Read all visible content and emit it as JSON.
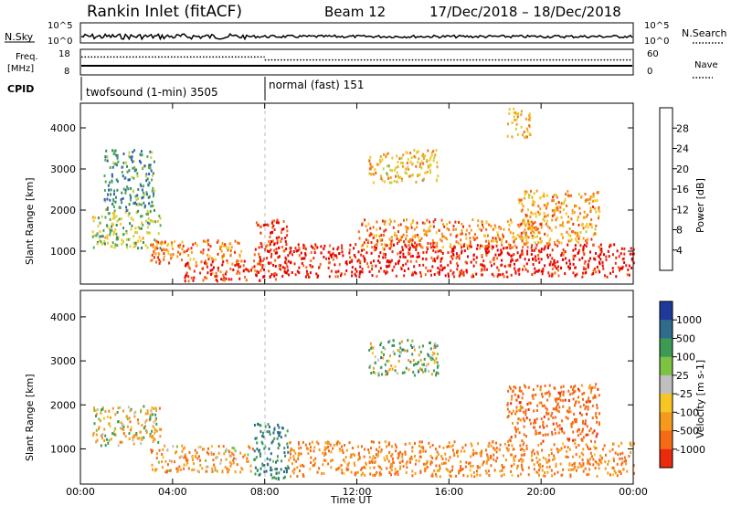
{
  "header": {
    "station": "Rankin Inlet (fitACF)",
    "beam": "Beam 12",
    "date_range": "17/Dec/2018 – 18/Dec/2018"
  },
  "top_panels": {
    "nsky_label": "N.Sky",
    "nsky_ticks": [
      "10^5",
      "10^0"
    ],
    "nsearch_label": "N.Search",
    "freq_label_1": "Freq.",
    "freq_label_2": "[MHz]",
    "freq_ticks": [
      "18",
      "8"
    ],
    "nave_ticks": [
      "60",
      "0"
    ],
    "nave_label": "Nave",
    "cpid_label": "CPID",
    "cpid_segments": [
      {
        "label": "twofsound (1-min) 3505",
        "start_hour": 0,
        "end_hour": 8
      },
      {
        "label": "normal (fast) 151",
        "start_hour": 8,
        "end_hour": 24
      }
    ],
    "freq_value_mhz": 13,
    "nave_dotted_before": 44,
    "nave_dotted_after": 36
  },
  "chart_data": [
    {
      "type": "heatmap",
      "name": "power",
      "xlabel": "",
      "ylabel": "Slant Range [km]",
      "xlim_hours": [
        0,
        24
      ],
      "ylim": [
        200,
        4600
      ],
      "yticks": [
        1000,
        2000,
        3000,
        4000
      ],
      "colorbar": {
        "label": "Power [dB]",
        "ticks": [
          "4",
          "8",
          "12",
          "16",
          "20",
          "24",
          "28"
        ],
        "colors": [
          "#0a1ee6",
          "#2d5fb8",
          "#3a8a6a",
          "#54a754",
          "#c8d23c",
          "#f7c623",
          "#f59a1c",
          "#f56a14",
          "#ea2a0c",
          "#e60000"
        ]
      },
      "regions": [
        {
          "x0": 0.5,
          "x1": 3.5,
          "y0": 1100,
          "y1": 2000,
          "value": 14
        },
        {
          "x0": 1.0,
          "x1": 3.2,
          "y0": 2000,
          "y1": 3500,
          "value": 10
        },
        {
          "x0": 3.0,
          "x1": 7.0,
          "y0": 700,
          "y1": 1300,
          "value": 22
        },
        {
          "x0": 4.5,
          "x1": 7.8,
          "y0": 300,
          "y1": 800,
          "value": 26
        },
        {
          "x0": 7.5,
          "x1": 9.0,
          "y0": 300,
          "y1": 1800,
          "value": 27
        },
        {
          "x0": 9.0,
          "x1": 24.0,
          "y0": 400,
          "y1": 1200,
          "value": 28
        },
        {
          "x0": 12.0,
          "x1": 20.0,
          "y0": 1100,
          "y1": 1800,
          "value": 22
        },
        {
          "x0": 19.0,
          "x1": 22.5,
          "y0": 1200,
          "y1": 2500,
          "value": 20
        },
        {
          "x0": 12.5,
          "x1": 15.5,
          "y0": 2700,
          "y1": 3500,
          "value": 18
        },
        {
          "x0": 18.5,
          "x1": 19.5,
          "y0": 3800,
          "y1": 4500,
          "value": 18
        }
      ]
    },
    {
      "type": "heatmap",
      "name": "velocity",
      "xlabel": "Time UT",
      "ylabel": "Slant Range [km]",
      "xlim_hours": [
        0,
        24
      ],
      "ylim": [
        200,
        4600
      ],
      "yticks": [
        1000,
        2000,
        3000,
        4000
      ],
      "xticks": [
        "00:00",
        "04:00",
        "08:00",
        "12:00",
        "16:00",
        "20:00",
        "00:00"
      ],
      "colorbar": {
        "label": "Velocity [m s-1]",
        "ticks": [
          "1000",
          "500",
          "100",
          "25",
          "-25",
          "-100",
          "-500",
          "-1000"
        ],
        "colors": [
          "#1f3a9a",
          "#2f6c8c",
          "#3c9a55",
          "#7cc243",
          "#bfbfbf",
          "#f7c623",
          "#f59a1c",
          "#f56a14",
          "#ea2a0c"
        ]
      },
      "regions": [
        {
          "x0": 0.5,
          "x1": 3.5,
          "y0": 1100,
          "y1": 2000,
          "value": -100
        },
        {
          "x0": 3.0,
          "x1": 7.5,
          "y0": 500,
          "y1": 1100,
          "value": -200
        },
        {
          "x0": 7.5,
          "x1": 9.0,
          "y0": 300,
          "y1": 1600,
          "value": 300
        },
        {
          "x0": 9.0,
          "x1": 24.0,
          "y0": 400,
          "y1": 1200,
          "value": -300
        },
        {
          "x0": 18.5,
          "x1": 22.5,
          "y0": 1200,
          "y1": 2500,
          "value": -500
        },
        {
          "x0": 12.5,
          "x1": 15.5,
          "y0": 2700,
          "y1": 3500,
          "value": 100
        }
      ]
    }
  ]
}
